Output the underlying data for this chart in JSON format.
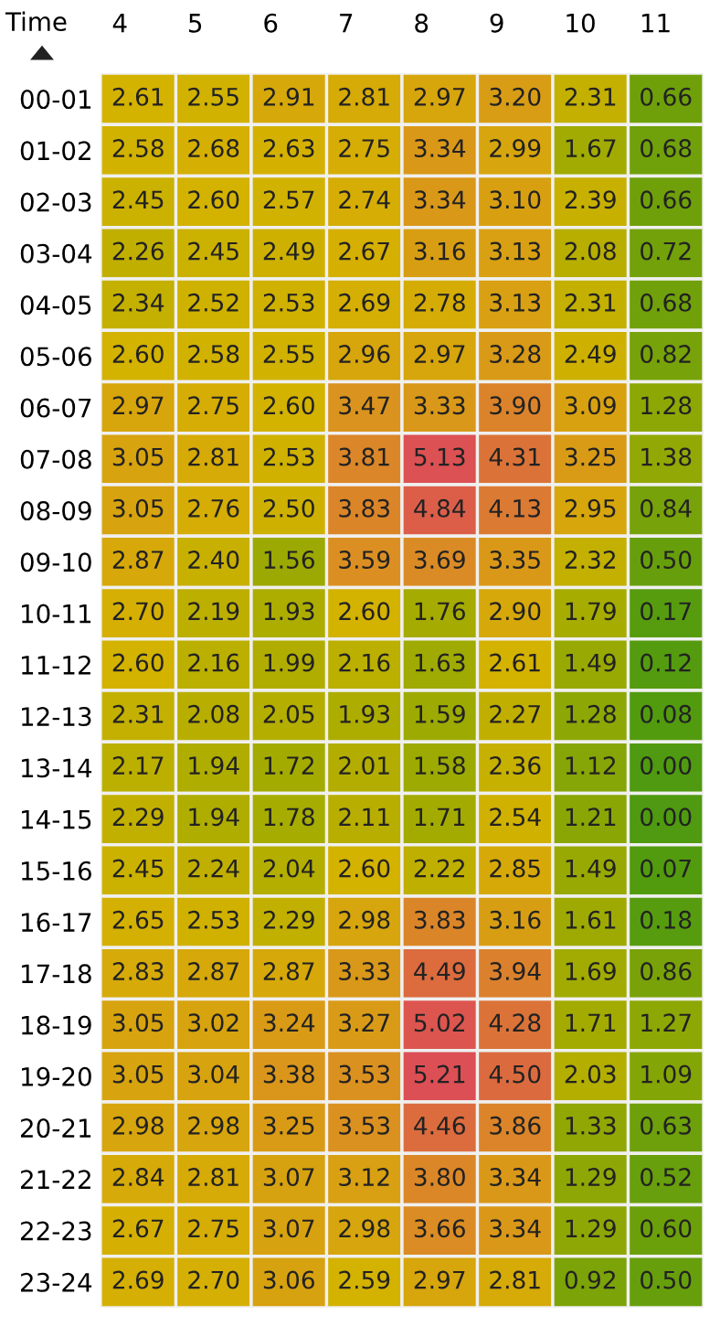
{
  "chart_data": {
    "type": "heatmap",
    "ylabel": "Time",
    "data_labels": true,
    "categories": [
      "4",
      "5",
      "6",
      "7",
      "8",
      "9",
      "10",
      "11"
    ],
    "y_categories": [
      "00-01",
      "01-02",
      "02-03",
      "03-04",
      "04-05",
      "05-06",
      "06-07",
      "07-08",
      "08-09",
      "09-10",
      "10-11",
      "11-12",
      "12-13",
      "13-14",
      "14-15",
      "15-16",
      "16-17",
      "17-18",
      "18-19",
      "19-20",
      "20-21",
      "21-22",
      "22-23",
      "23-24"
    ],
    "cells": [
      [
        2.61,
        2.55,
        2.91,
        2.81,
        2.97,
        3.2,
        2.31,
        0.66
      ],
      [
        2.58,
        2.68,
        2.63,
        2.75,
        3.34,
        2.99,
        1.67,
        0.68
      ],
      [
        2.45,
        2.6,
        2.57,
        2.74,
        3.34,
        3.1,
        2.39,
        0.66
      ],
      [
        2.26,
        2.45,
        2.49,
        2.67,
        3.16,
        3.13,
        2.08,
        0.72
      ],
      [
        2.34,
        2.52,
        2.53,
        2.69,
        2.78,
        3.13,
        2.31,
        0.68
      ],
      [
        2.6,
        2.58,
        2.55,
        2.96,
        2.97,
        3.28,
        2.49,
        0.82
      ],
      [
        2.97,
        2.75,
        2.6,
        3.47,
        3.33,
        3.9,
        3.09,
        1.28
      ],
      [
        3.05,
        2.81,
        2.53,
        3.81,
        5.13,
        4.31,
        3.25,
        1.38
      ],
      [
        3.05,
        2.76,
        2.5,
        3.83,
        4.84,
        4.13,
        2.95,
        0.84
      ],
      [
        2.87,
        2.4,
        1.56,
        3.59,
        3.69,
        3.35,
        2.32,
        0.5
      ],
      [
        2.7,
        2.19,
        1.93,
        2.6,
        1.76,
        2.9,
        1.79,
        0.17
      ],
      [
        2.6,
        2.16,
        1.99,
        2.16,
        1.63,
        2.61,
        1.49,
        0.12
      ],
      [
        2.31,
        2.08,
        2.05,
        1.93,
        1.59,
        2.27,
        1.28,
        0.08
      ],
      [
        2.17,
        1.94,
        1.72,
        2.01,
        1.58,
        2.36,
        1.12,
        0.0
      ],
      [
        2.29,
        1.94,
        1.78,
        2.11,
        1.71,
        2.54,
        1.21,
        0.0
      ],
      [
        2.45,
        2.24,
        2.04,
        2.6,
        2.22,
        2.85,
        1.49,
        0.07
      ],
      [
        2.65,
        2.53,
        2.29,
        2.98,
        3.83,
        3.16,
        1.61,
        0.18
      ],
      [
        2.83,
        2.87,
        2.87,
        3.33,
        4.49,
        3.94,
        1.69,
        0.86
      ],
      [
        3.05,
        3.02,
        3.24,
        3.27,
        5.02,
        4.28,
        1.71,
        1.27
      ],
      [
        3.05,
        3.04,
        3.38,
        3.53,
        5.21,
        4.5,
        2.03,
        1.09
      ],
      [
        2.98,
        2.98,
        3.25,
        3.53,
        4.46,
        3.86,
        1.33,
        0.63
      ],
      [
        2.84,
        2.81,
        3.07,
        3.12,
        3.8,
        3.34,
        1.29,
        0.52
      ],
      [
        2.67,
        2.75,
        3.07,
        2.98,
        3.66,
        3.34,
        1.29,
        0.6
      ],
      [
        2.69,
        2.7,
        3.06,
        2.59,
        2.97,
        2.81,
        0.92,
        0.5
      ]
    ],
    "cell_labels": [
      [
        "2.61",
        "2.55",
        "2.91",
        "2.81",
        "2.97",
        "3.20",
        "2.31",
        "0.66"
      ],
      [
        "2.58",
        "2.68",
        "2.63",
        "2.75",
        "3.34",
        "2.99",
        "1.67",
        "0.68"
      ],
      [
        "2.45",
        "2.60",
        "2.57",
        "2.74",
        "3.34",
        "3.10",
        "2.39",
        "0.66"
      ],
      [
        "2.26",
        "2.45",
        "2.49",
        "2.67",
        "3.16",
        "3.13",
        "2.08",
        "0.72"
      ],
      [
        "2.34",
        "2.52",
        "2.53",
        "2.69",
        "2.78",
        "3.13",
        "2.31",
        "0.68"
      ],
      [
        "2.60",
        "2.58",
        "2.55",
        "2.96",
        "2.97",
        "3.28",
        "2.49",
        "0.82"
      ],
      [
        "2.97",
        "2.75",
        "2.60",
        "3.47",
        "3.33",
        "3.90",
        "3.09",
        "1.28"
      ],
      [
        "3.05",
        "2.81",
        "2.53",
        "3.81",
        "5.13",
        "4.31",
        "3.25",
        "1.38"
      ],
      [
        "3.05",
        "2.76",
        "2.50",
        "3.83",
        "4.84",
        "4.13",
        "2.95",
        "0.84"
      ],
      [
        "2.87",
        "2.40",
        "1.56",
        "3.59",
        "3.69",
        "3.35",
        "2.32",
        "0.50"
      ],
      [
        "2.70",
        "2.19",
        "1.93",
        "2.60",
        "1.76",
        "2.90",
        "1.79",
        "0.17"
      ],
      [
        "2.60",
        "2.16",
        "1.99",
        "2.16",
        "1.63",
        "2.61",
        "1.49",
        "0.12"
      ],
      [
        "2.31",
        "2.08",
        "2.05",
        "1.93",
        "1.59",
        "2.27",
        "1.28",
        "0.08"
      ],
      [
        "2.17",
        "1.94",
        "1.72",
        "2.01",
        "1.58",
        "2.36",
        "1.12",
        "0.00"
      ],
      [
        "2.29",
        "1.94",
        "1.78",
        "2.11",
        "1.71",
        "2.54",
        "1.21",
        "0.00"
      ],
      [
        "2.45",
        "2.24",
        "2.04",
        "2.60",
        "2.22",
        "2.85",
        "1.49",
        "0.07"
      ],
      [
        "2.65",
        "2.53",
        "2.29",
        "2.98",
        "3.83",
        "3.16",
        "1.61",
        "0.18"
      ],
      [
        "2.83",
        "2.87",
        "2.87",
        "3.33",
        "4.49",
        "3.94",
        "1.69",
        "0.86"
      ],
      [
        "3.05",
        "3.02",
        "3.24",
        "3.27",
        "5.02",
        "4.28",
        "1.71",
        "1.27"
      ],
      [
        "3.05",
        "3.04",
        "3.38",
        "3.53",
        "5.21",
        "4.50",
        "2.03",
        "1.09"
      ],
      [
        "2.98",
        "2.98",
        "3.25",
        "3.53",
        "4.46",
        "3.86",
        "1.33",
        "0.63"
      ],
      [
        "2.84",
        "2.81",
        "3.07",
        "3.12",
        "3.80",
        "3.34",
        "1.29",
        "0.52"
      ],
      [
        "2.67",
        "2.75",
        "3.07",
        "2.98",
        "3.66",
        "3.34",
        "1.29",
        "0.60"
      ],
      [
        "2.69",
        "2.70",
        "3.06",
        "2.59",
        "2.97",
        "2.81",
        "0.92",
        "0.50"
      ]
    ]
  }
}
